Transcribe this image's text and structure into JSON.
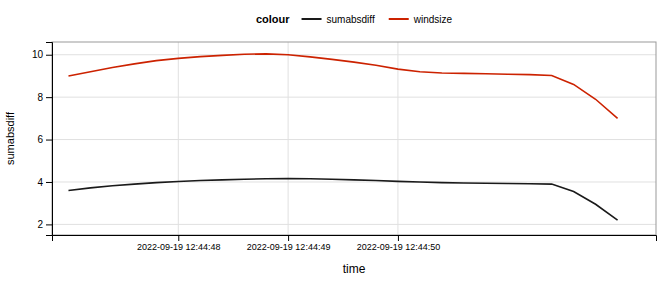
{
  "chart_data": {
    "type": "line",
    "xlabel": "time",
    "ylabel": "sumabsdiff",
    "legend_title": "colour",
    "legend": "top",
    "grid": true,
    "x": [
      0.0,
      0.2,
      0.4,
      0.6,
      0.8,
      1.0,
      1.2,
      1.4,
      1.6,
      1.8,
      2.0,
      2.2,
      2.4,
      2.6,
      2.8,
      3.0,
      3.2,
      3.4,
      3.6,
      3.8,
      4.0,
      4.2,
      4.4,
      4.6,
      4.8,
      5.0
    ],
    "series": [
      {
        "name": "sumabsdiff",
        "color": "#1a1a1a",
        "values": [
          3.6,
          3.72,
          3.82,
          3.9,
          3.97,
          4.02,
          4.07,
          4.1,
          4.13,
          4.15,
          4.16,
          4.15,
          4.13,
          4.1,
          4.07,
          4.03,
          4.0,
          3.97,
          3.95,
          3.94,
          3.93,
          3.92,
          3.9,
          3.55,
          2.95,
          2.2
        ]
      },
      {
        "name": "windsize",
        "color": "#cc2200",
        "values": [
          9.0,
          9.2,
          9.4,
          9.57,
          9.72,
          9.83,
          9.91,
          9.97,
          10.02,
          10.04,
          10.0,
          9.9,
          9.78,
          9.65,
          9.5,
          9.32,
          9.2,
          9.14,
          9.12,
          9.1,
          9.08,
          9.06,
          9.02,
          8.6,
          7.9,
          7.0
        ]
      }
    ],
    "xlim": [
      -0.15,
      5.35
    ],
    "xticks": [
      {
        "value": 1.0,
        "label": "2022-09-19 12:44:48"
      },
      {
        "value": 2.0,
        "label": "2022-09-19 12:44:49"
      },
      {
        "value": 3.0,
        "label": "2022-09-19 12:44:50"
      }
    ],
    "ylim": [
      1.5,
      10.6
    ],
    "yticks": [
      2,
      4,
      6,
      8,
      10
    ]
  }
}
